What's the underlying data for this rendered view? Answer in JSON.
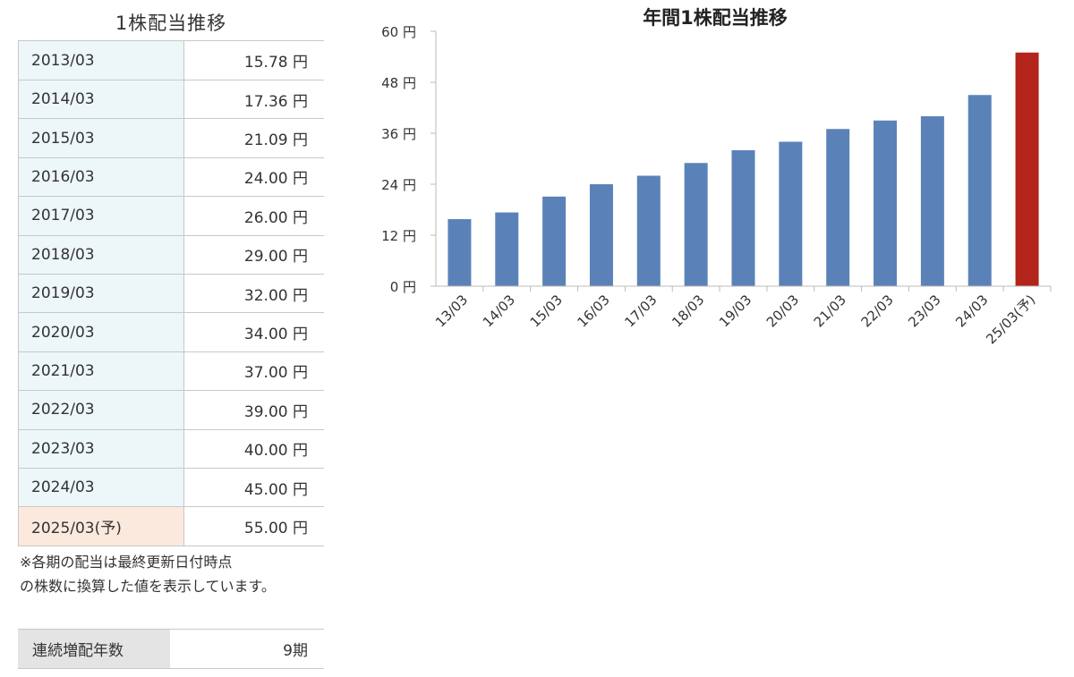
{
  "table": {
    "title": "1株配当推移",
    "rows": [
      {
        "period": "2013/03",
        "value": "15.78 円",
        "forecast": false
      },
      {
        "period": "2014/03",
        "value": "17.36 円",
        "forecast": false
      },
      {
        "period": "2015/03",
        "value": "21.09 円",
        "forecast": false
      },
      {
        "period": "2016/03",
        "value": "24.00 円",
        "forecast": false
      },
      {
        "period": "2017/03",
        "value": "26.00 円",
        "forecast": false
      },
      {
        "period": "2018/03",
        "value": "29.00 円",
        "forecast": false
      },
      {
        "period": "2019/03",
        "value": "32.00 円",
        "forecast": false
      },
      {
        "period": "2020/03",
        "value": "34.00 円",
        "forecast": false
      },
      {
        "period": "2021/03",
        "value": "37.00 円",
        "forecast": false
      },
      {
        "period": "2022/03",
        "value": "39.00 円",
        "forecast": false
      },
      {
        "period": "2023/03",
        "value": "40.00 円",
        "forecast": false
      },
      {
        "period": "2024/03",
        "value": "45.00 円",
        "forecast": false
      },
      {
        "period": "2025/03(予)",
        "value": "55.00 円",
        "forecast": true
      }
    ],
    "note": "※各期の配当は最終更新日付時点\nの株数に換算した値を表示しています。"
  },
  "streak": {
    "label": "連続増配年数",
    "value": "9期"
  },
  "colors": {
    "bar": "#5b82b8",
    "forecast_bar": "#b3241b",
    "period_bg": "#edf6f8",
    "forecast_bg": "#fbe9de"
  },
  "chart_data": {
    "type": "bar",
    "title": "年間1株配当推移",
    "categories": [
      "13/03",
      "14/03",
      "15/03",
      "16/03",
      "17/03",
      "18/03",
      "19/03",
      "20/03",
      "21/03",
      "22/03",
      "23/03",
      "24/03",
      "25/03(予)"
    ],
    "values": [
      15.78,
      17.36,
      21.09,
      24.0,
      26.0,
      29.0,
      32.0,
      34.0,
      37.0,
      39.0,
      40.0,
      45.0,
      55.0
    ],
    "highlight_last": true,
    "yticks": [
      "0 円",
      "12 円",
      "24 円",
      "36 円",
      "48 円",
      "60 円"
    ],
    "ytick_values": [
      0,
      12,
      24,
      36,
      48,
      60
    ],
    "ylim": [
      0,
      60
    ],
    "xlabel": "",
    "ylabel": "",
    "grid": false,
    "legend": "none"
  }
}
